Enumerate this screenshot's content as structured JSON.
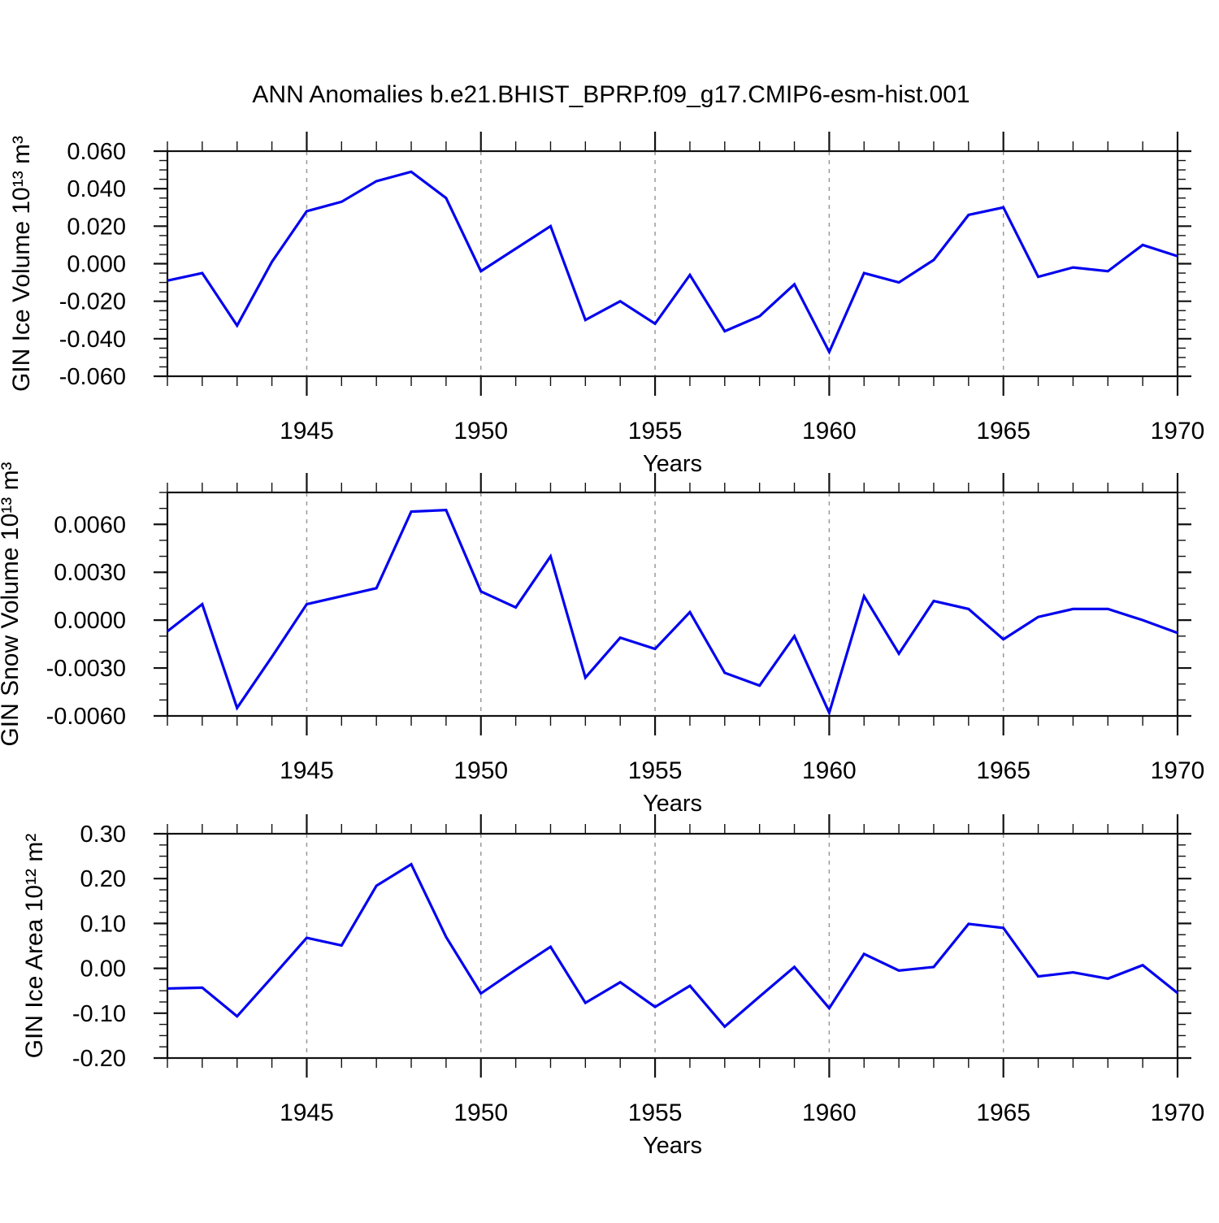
{
  "title": "ANN Anomalies b.e21.BHIST_BPRP.f09_g17.CMIP6-esm-hist.001",
  "x_axis": {
    "label": "Years",
    "range": [
      1941,
      1970
    ],
    "major_ticks": [
      1945,
      1950,
      1955,
      1960,
      1965,
      1970
    ],
    "major_tick_labels": [
      "1945",
      "1950",
      "1955",
      "1960",
      "1965",
      "1970"
    ],
    "minor_step": 1,
    "gridline_years": [
      1945,
      1950,
      1955,
      1960,
      1965
    ]
  },
  "line_color": "#0202EF",
  "grid_color": "#9a9a9a",
  "frame_color": "#111111",
  "chart_data": [
    {
      "type": "line",
      "ylabel": "GIN Ice Volume 10¹³ m³",
      "ylim": [
        -0.06,
        0.06
      ],
      "ytick_values": [
        0.06,
        0.04,
        0.02,
        0.0,
        -0.02,
        -0.04,
        -0.06
      ],
      "ytick_labels": [
        "0.060",
        "0.040",
        "0.020",
        "0.000",
        "-0.020",
        "-0.040",
        "-0.060"
      ],
      "yminor_step": 0.005,
      "x": [
        1941,
        1942,
        1943,
        1944,
        1945,
        1946,
        1947,
        1948,
        1949,
        1950,
        1951,
        1952,
        1953,
        1954,
        1955,
        1956,
        1957,
        1958,
        1959,
        1960,
        1961,
        1962,
        1963,
        1964,
        1965,
        1966,
        1967,
        1968,
        1969,
        1970
      ],
      "values": [
        -0.009,
        -0.005,
        -0.033,
        0.001,
        0.028,
        0.033,
        0.044,
        0.049,
        0.035,
        -0.004,
        0.008,
        0.02,
        -0.03,
        -0.02,
        -0.032,
        -0.006,
        -0.036,
        -0.028,
        -0.011,
        -0.047,
        -0.005,
        -0.01,
        0.002,
        0.026,
        0.03,
        -0.007,
        -0.002,
        -0.004,
        0.01,
        0.004
      ]
    },
    {
      "type": "line",
      "ylabel": "GIN Snow Volume 10¹³ m³",
      "ylim": [
        -0.006,
        0.008
      ],
      "ytick_values": [
        0.006,
        0.003,
        0.0,
        -0.003,
        -0.006
      ],
      "ytick_labels": [
        "0.0060",
        "0.0030",
        "0.0000",
        "-0.0030",
        "-0.0060"
      ],
      "yminor_step": 0.001,
      "x": [
        1941,
        1942,
        1943,
        1944,
        1945,
        1946,
        1947,
        1948,
        1949,
        1950,
        1951,
        1952,
        1953,
        1954,
        1955,
        1956,
        1957,
        1958,
        1959,
        1960,
        1961,
        1962,
        1963,
        1964,
        1965,
        1966,
        1967,
        1968,
        1969,
        1970
      ],
      "values": [
        -0.0007,
        0.001,
        -0.0055,
        -0.0023,
        0.001,
        0.0015,
        0.002,
        0.0068,
        0.0069,
        0.0018,
        0.0008,
        0.004,
        -0.0036,
        -0.0011,
        -0.0018,
        0.0005,
        -0.0033,
        -0.0041,
        -0.001,
        -0.0058,
        0.0015,
        -0.0021,
        0.0012,
        0.0007,
        -0.0012,
        0.0002,
        0.0007,
        0.0007,
        0.0,
        -0.0008
      ]
    },
    {
      "type": "line",
      "ylabel": "GIN Ice Area 10¹² m²",
      "ylim": [
        -0.2,
        0.3
      ],
      "ytick_values": [
        0.3,
        0.2,
        0.1,
        0.0,
        -0.1,
        -0.2
      ],
      "ytick_labels": [
        "0.30",
        "0.20",
        "0.10",
        "0.00",
        "-0.10",
        "-0.20"
      ],
      "yminor_step": 0.025,
      "x": [
        1941,
        1942,
        1943,
        1944,
        1945,
        1946,
        1947,
        1948,
        1949,
        1950,
        1951,
        1952,
        1953,
        1954,
        1955,
        1956,
        1957,
        1958,
        1959,
        1960,
        1961,
        1962,
        1963,
        1964,
        1965,
        1966,
        1967,
        1968,
        1969,
        1970
      ],
      "values": [
        -0.045,
        -0.043,
        -0.107,
        -0.02,
        0.068,
        0.051,
        0.184,
        0.232,
        0.07,
        -0.056,
        -0.003,
        0.048,
        -0.077,
        -0.031,
        -0.086,
        -0.039,
        -0.13,
        -0.063,
        0.003,
        -0.089,
        0.032,
        -0.005,
        0.003,
        0.099,
        0.09,
        -0.018,
        -0.009,
        -0.023,
        0.007,
        -0.055
      ]
    }
  ]
}
